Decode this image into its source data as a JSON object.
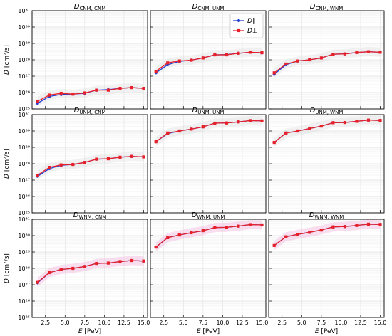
{
  "chart_data": {
    "type": "line",
    "x": [
      1.5,
      3.0,
      4.5,
      6.0,
      7.5,
      9.0,
      10.5,
      12.0,
      13.5,
      15.0
    ],
    "xlim": [
      0.8,
      15.5
    ],
    "xticks": [
      2.5,
      5.0,
      7.5,
      10.0,
      12.5,
      15.0
    ],
    "xtick_labels": [
      "2.5",
      "5.0",
      "7.5",
      "10.0",
      "12.5",
      "15.0"
    ],
    "xlabel": "E [PeV]",
    "ylabel": "D [cm²/s]",
    "yscale": "log",
    "ylim_exp": [
      25,
      31
    ],
    "ytick_labels": [
      "10²⁵",
      "10²⁶",
      "10²⁷",
      "10²⁸",
      "10²⁹",
      "10³⁰",
      "10³¹"
    ],
    "grid": true,
    "legend": {
      "placement": "top-right",
      "panel": 1,
      "entries": [
        {
          "label": "D∥",
          "color": "#1f3fd6"
        },
        {
          "label": "D⊥",
          "color": "#e8202a"
        }
      ]
    },
    "colors": {
      "parallel": "#1f3fd6",
      "perpendicular": "#e8202a",
      "band_grey": "#d9d9d9",
      "band_pink": "#f2b8dc"
    },
    "panels": [
      {
        "title": "DCNM, CNM",
        "parallel": [
          2.2e+25,
          5.8e+25,
          7.6e+25,
          8e+25,
          9e+25,
          1.4e+26,
          1.5e+26,
          1.8e+26,
          2e+26,
          1.8e+26
        ],
        "perpendicular": [
          2.9e+25,
          7e+25,
          9e+25,
          8e+25,
          9.5e+25,
          1.4e+26,
          1.4e+26,
          1.8e+26,
          2e+26,
          1.8e+26
        ]
      },
      {
        "title": "DCNM, UNM",
        "parallel": [
          1.6e+27,
          5e+27,
          8e+27,
          9.5e+27,
          1.3e+28,
          2e+28,
          2.1e+28,
          2.5e+28,
          2.9e+28,
          2.7e+28
        ],
        "perpendicular": [
          2e+27,
          6.5e+27,
          8.5e+27,
          9.5e+27,
          1.3e+28,
          2e+28,
          2e+28,
          2.5e+28,
          2.9e+28,
          2.7e+28
        ]
      },
      {
        "title": "DCNM, WNM",
        "parallel": [
          1.3e+27,
          5e+27,
          8.5e+27,
          1e+28,
          1.3e+28,
          2.2e+28,
          2.3e+28,
          2.8e+28,
          3.1e+28,
          2.9e+28
        ],
        "perpendicular": [
          1.6e+27,
          5.5e+27,
          8.5e+27,
          1e+28,
          1.3e+28,
          2.2e+28,
          2.3e+28,
          2.8e+28,
          3.1e+28,
          2.9e+28
        ]
      },
      {
        "title": "DUNM, CNM",
        "parallel": [
          1.7e+27,
          5e+27,
          8e+27,
          9e+27,
          1.2e+28,
          1.9e+28,
          2e+28,
          2.5e+28,
          2.8e+28,
          2.6e+28
        ],
        "perpendicular": [
          2e+27,
          6e+27,
          8.5e+27,
          9e+27,
          1.2e+28,
          1.9e+28,
          2e+28,
          2.5e+28,
          2.8e+28,
          2.6e+28
        ]
      },
      {
        "title": "DUNM, UNM",
        "parallel": [
          2.2e+29,
          7e+29,
          1e+30,
          1.3e+30,
          1.8e+30,
          3e+30,
          3.1e+30,
          3.6e+30,
          4.3e+30,
          4.1e+30
        ],
        "perpendicular": [
          2.2e+29,
          7.5e+29,
          1e+30,
          1.3e+30,
          1.8e+30,
          3e+30,
          3.1e+30,
          3.6e+30,
          4.3e+30,
          4.1e+30
        ]
      },
      {
        "title": "DUNM, WNM",
        "parallel": [
          2e+29,
          7.5e+29,
          1e+30,
          1.4e+30,
          2e+30,
          3.2e+30,
          3.3e+30,
          3.9e+30,
          4.6e+30,
          4.4e+30
        ],
        "perpendicular": [
          2e+29,
          7.5e+29,
          1e+30,
          1.4e+30,
          2e+30,
          3.2e+30,
          3.3e+30,
          3.9e+30,
          4.6e+30,
          4.4e+30
        ]
      },
      {
        "title": "DWNM, CNM",
        "parallel": [
          1.3e+27,
          5.5e+27,
          8.5e+27,
          1e+28,
          1.3e+28,
          2e+28,
          2.1e+28,
          2.6e+28,
          3e+28,
          2.8e+28
        ],
        "perpendicular": [
          1.4e+27,
          5.5e+27,
          8.5e+27,
          1e+28,
          1.3e+28,
          2e+28,
          2.1e+28,
          2.6e+28,
          3e+28,
          2.8e+28
        ]
      },
      {
        "title": "DWNM, UNM",
        "parallel": [
          2e+29,
          7.5e+29,
          1.1e+30,
          1.5e+30,
          2e+30,
          3.1e+30,
          3.2e+30,
          3.8e+30,
          4.7e+30,
          4.5e+30
        ],
        "perpendicular": [
          2e+29,
          7.5e+29,
          1.1e+30,
          1.5e+30,
          2e+30,
          3.1e+30,
          3.2e+30,
          3.8e+30,
          4.7e+30,
          4.5e+30
        ]
      },
      {
        "title": "DWNM, WNM",
        "parallel": [
          2.5e+29,
          8.5e+29,
          1.2e+30,
          1.6e+30,
          2.2e+30,
          3.4e+30,
          3.6e+30,
          4.2e+30,
          5e+30,
          4.8e+30
        ],
        "perpendicular": [
          2.5e+29,
          8.5e+29,
          1.2e+30,
          1.6e+30,
          2.2e+30,
          3.4e+30,
          3.6e+30,
          4.2e+30,
          5e+30,
          4.8e+30
        ]
      }
    ]
  }
}
